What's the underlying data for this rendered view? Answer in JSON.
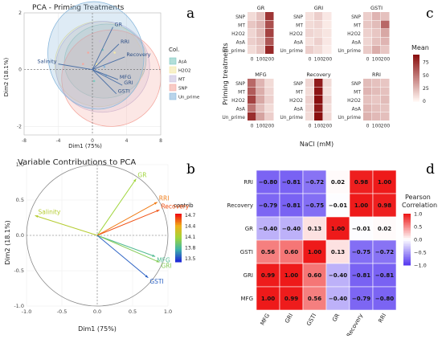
{
  "panels": {
    "a": "a",
    "b": "b",
    "c": "c",
    "d": "d"
  },
  "chart_data": [
    {
      "type": "scatter",
      "title": "PCA - Priming Treatments",
      "xlabel": "Dim1 (75%)",
      "ylabel": "Dim2 (18.1%)",
      "xlim": [
        -8,
        8
      ],
      "ylim": [
        -2.3,
        2.0
      ],
      "xticks": [
        -8,
        -4,
        0,
        4,
        8
      ],
      "yticks": [
        -2,
        0,
        2
      ],
      "legend_title": "Col.",
      "groups": [
        {
          "name": "AsA",
          "color": "#7fc9c0",
          "center": [
            1.5,
            0.3
          ],
          "rx": 4.8,
          "ry": 1.3,
          "rot": -8
        },
        {
          "name": "H2O2",
          "color": "#f3e8a6",
          "center": [
            0.8,
            0.2
          ],
          "rx": 5.2,
          "ry": 1.5,
          "rot": -6
        },
        {
          "name": "MT",
          "color": "#c8bfe0",
          "center": [
            1.2,
            0.1
          ],
          "rx": 5.5,
          "ry": 1.6,
          "rot": -5
        },
        {
          "name": "SNP",
          "color": "#f4a9a0",
          "center": [
            2.2,
            -0.3
          ],
          "rx": 5.8,
          "ry": 1.7,
          "rot": -4
        },
        {
          "name": "Un_prime",
          "color": "#8ab8dc",
          "center": [
            0.4,
            0.5
          ],
          "rx": 5.6,
          "ry": 1.9,
          "rot": -10
        }
      ],
      "vectors": [
        {
          "name": "GR",
          "x": 2.4,
          "y": 1.5
        },
        {
          "name": "RRI",
          "x": 3.1,
          "y": 0.9
        },
        {
          "name": "Recovery",
          "x": 3.8,
          "y": 0.45
        },
        {
          "name": "Salinity",
          "x": -4.0,
          "y": 0.2
        },
        {
          "name": "MFG",
          "x": 3.0,
          "y": -0.35
        },
        {
          "name": "GRI",
          "x": 3.5,
          "y": -0.55
        },
        {
          "name": "GSTI",
          "x": 2.8,
          "y": -0.85
        }
      ]
    },
    {
      "type": "scatter",
      "title": "Variable Contributions to PCA",
      "xlabel": "Dim1 (75%)",
      "ylabel": "Dim2 (18.1%)",
      "xlim": [
        -1.0,
        1.0
      ],
      "ylim": [
        -1.0,
        1.0
      ],
      "xticks": [
        "-1.0",
        "-0.5",
        "0.0",
        "0.5",
        "1.0"
      ],
      "yticks": [
        "-1.0",
        "-0.5",
        "0.0",
        "0.5",
        "1.0"
      ],
      "legend_title": "contrib",
      "legend_ticks": [
        "14.7",
        "14.4",
        "14.1",
        "13.8",
        "13.5"
      ],
      "contrib_range": [
        13.35,
        14.85
      ],
      "vectors": [
        {
          "name": "GR",
          "x": 0.55,
          "y": 0.8,
          "contrib": 14.1
        },
        {
          "name": "RRI",
          "x": 0.85,
          "y": 0.47,
          "contrib": 14.6
        },
        {
          "name": "Recovery",
          "x": 0.88,
          "y": 0.36,
          "contrib": 14.7
        },
        {
          "name": "Salinity",
          "x": -0.88,
          "y": 0.28,
          "contrib": 14.2
        },
        {
          "name": "MFG",
          "x": 0.82,
          "y": -0.3,
          "contrib": 13.8
        },
        {
          "name": "GRI",
          "x": 0.88,
          "y": -0.38,
          "contrib": 14.0
        },
        {
          "name": "GSTI",
          "x": 0.72,
          "y": -0.6,
          "contrib": 13.5
        }
      ]
    },
    {
      "type": "heatmap",
      "ylabel": "Priming treatments",
      "xlabel": "NaCl (mM)",
      "legend_title": "Mean",
      "legend_ticks": [
        "75",
        "50",
        "25",
        "0"
      ],
      "rows": [
        "SNP",
        "MT",
        "H2O2",
        "AsA",
        "Un_prime"
      ],
      "cols": [
        "0",
        "100",
        "200"
      ],
      "facets": [
        {
          "name": "GR",
          "values": [
            [
              10,
              20,
              75
            ],
            [
              18,
              25,
              65
            ],
            [
              12,
              22,
              70
            ],
            [
              15,
              20,
              62
            ],
            [
              10,
              18,
              80
            ]
          ]
        },
        {
          "name": "GRI",
          "values": [
            [
              8,
              15,
              5
            ],
            [
              10,
              12,
              4
            ],
            [
              12,
              10,
              6
            ],
            [
              8,
              14,
              5
            ],
            [
              15,
              10,
              3
            ]
          ]
        },
        {
          "name": "GSTI",
          "values": [
            [
              15,
              25,
              20
            ],
            [
              18,
              22,
              55
            ],
            [
              14,
              18,
              30
            ],
            [
              12,
              20,
              25
            ],
            [
              16,
              28,
              18
            ]
          ]
        },
        {
          "name": "MFG",
          "values": [
            [
              55,
              25,
              10
            ],
            [
              60,
              28,
              12
            ],
            [
              70,
              30,
              14
            ],
            [
              50,
              22,
              10
            ],
            [
              78,
              32,
              15
            ]
          ]
        },
        {
          "name": "Recovery",
          "values": [
            [
              12,
              85,
              10
            ],
            [
              10,
              88,
              8
            ],
            [
              14,
              90,
              12
            ],
            [
              12,
              86,
              9
            ],
            [
              10,
              92,
              11
            ]
          ]
        },
        {
          "name": "RRI",
          "values": [
            [
              22,
              20,
              18
            ],
            [
              25,
              22,
              20
            ],
            [
              20,
              18,
              22
            ],
            [
              24,
              21,
              19
            ],
            [
              26,
              23,
              21
            ]
          ]
        }
      ]
    },
    {
      "type": "heatmap",
      "legend_title": "Pearson Correlation",
      "legend_ticks": [
        "1.0",
        "0.5",
        "0.0",
        "-0.5",
        "-1.0"
      ],
      "rows": [
        "RRI",
        "Recovery",
        "GR",
        "GSTI",
        "GRI",
        "MFG"
      ],
      "cols": [
        "MFG",
        "GRI",
        "GSTI",
        "GR",
        "Recovery",
        "RRI"
      ],
      "values": [
        [
          -0.8,
          -0.81,
          -0.72,
          0.02,
          0.98,
          1.0
        ],
        [
          -0.79,
          -0.81,
          -0.75,
          -0.01,
          1.0,
          0.98
        ],
        [
          -0.4,
          -0.4,
          0.13,
          1.0,
          -0.01,
          0.02
        ],
        [
          0.56,
          0.6,
          1.0,
          0.13,
          -0.75,
          -0.72
        ],
        [
          0.99,
          1.0,
          0.6,
          -0.4,
          -0.81,
          -0.81
        ],
        [
          1.0,
          0.99,
          0.56,
          -0.4,
          -0.79,
          -0.8
        ]
      ]
    }
  ]
}
